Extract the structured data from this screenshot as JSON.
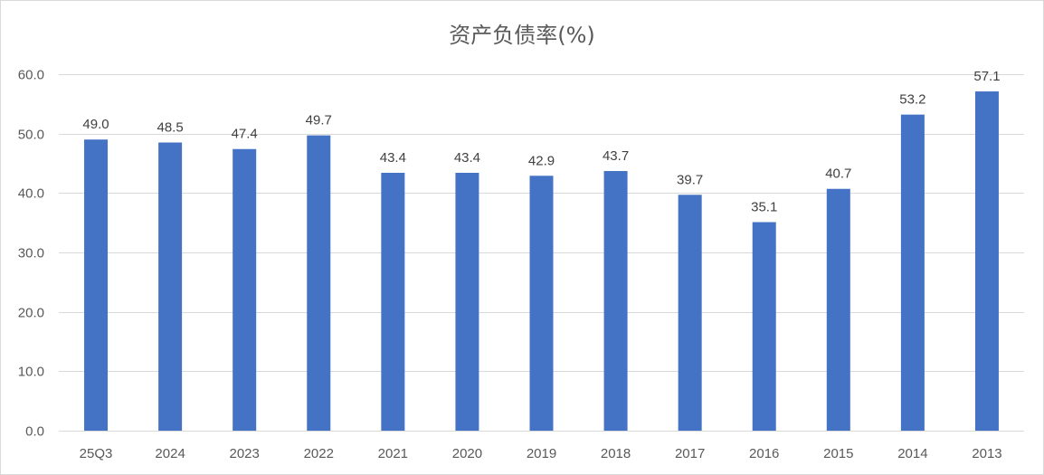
{
  "chart_data": {
    "type": "bar",
    "title": "资产负债率(%)",
    "xlabel": "",
    "ylabel": "",
    "categories": [
      "25Q3",
      "2024",
      "2023",
      "2022",
      "2021",
      "2020",
      "2019",
      "2018",
      "2017",
      "2016",
      "2015",
      "2014",
      "2013"
    ],
    "values": [
      49.0,
      48.5,
      47.4,
      49.7,
      43.4,
      43.4,
      42.9,
      43.7,
      39.7,
      35.1,
      40.7,
      53.2,
      57.1
    ],
    "value_labels": [
      "49.0",
      "48.5",
      "47.4",
      "49.7",
      "43.4",
      "43.4",
      "42.9",
      "43.7",
      "39.7",
      "35.1",
      "40.7",
      "53.2",
      "57.1"
    ],
    "yticks": [
      "0.0",
      "10.0",
      "20.0",
      "30.0",
      "40.0",
      "50.0",
      "60.0"
    ],
    "ylim": [
      0,
      60
    ],
    "grid": true,
    "legend": "none",
    "bar_color": "#4472C4"
  }
}
